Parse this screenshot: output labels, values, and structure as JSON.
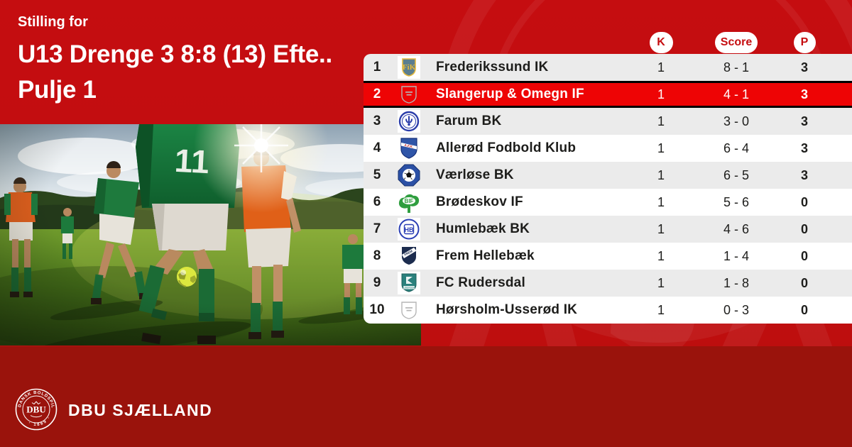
{
  "header": {
    "eyebrow": "Stilling for",
    "title_line1": "U13 Drenge 3 8:8 (13) Efte..",
    "title_line2": "Pulje 1"
  },
  "table": {
    "columns": {
      "played": "K",
      "score": "Score",
      "points": "P"
    },
    "rows": [
      {
        "pos": "1",
        "club": "Frederikssund IK",
        "logo": "frederikssund",
        "played": "1",
        "score": "8 - 1",
        "points": "3",
        "highlight": false
      },
      {
        "pos": "2",
        "club": "Slangerup & Omegn IF",
        "logo": "placeholder",
        "played": "1",
        "score": "4 - 1",
        "points": "3",
        "highlight": true
      },
      {
        "pos": "3",
        "club": "Farum BK",
        "logo": "farum",
        "played": "1",
        "score": "3 - 0",
        "points": "3",
        "highlight": false
      },
      {
        "pos": "4",
        "club": "Allerød Fodbold Klub",
        "logo": "alleroed",
        "played": "1",
        "score": "6 - 4",
        "points": "3",
        "highlight": false
      },
      {
        "pos": "5",
        "club": "Værløse BK",
        "logo": "vaerloese",
        "played": "1",
        "score": "6 - 5",
        "points": "3",
        "highlight": false
      },
      {
        "pos": "6",
        "club": "Brødeskov IF",
        "logo": "broedeskov",
        "played": "1",
        "score": "5 - 6",
        "points": "0",
        "highlight": false
      },
      {
        "pos": "7",
        "club": "Humlebæk BK",
        "logo": "humlebaek",
        "played": "1",
        "score": "4 - 6",
        "points": "0",
        "highlight": false
      },
      {
        "pos": "8",
        "club": "Frem Hellebæk",
        "logo": "frem",
        "played": "1",
        "score": "1 - 4",
        "points": "0",
        "highlight": false
      },
      {
        "pos": "9",
        "club": "FC Rudersdal",
        "logo": "rudersdal",
        "played": "1",
        "score": "1 - 8",
        "points": "0",
        "highlight": false
      },
      {
        "pos": "10",
        "club": "Hørsholm-Usserød IK",
        "logo": "placeholder",
        "played": "1",
        "score": "0 - 3",
        "points": "0",
        "highlight": false
      }
    ]
  },
  "footer": {
    "brand": "DBU SJÆLLAND",
    "crest_center": "DBU",
    "crest_ring_top": "DANSK BOLDSPIL UNION",
    "crest_ring_bottom": "· 1889 ·"
  },
  "colors": {
    "accent": "#c50d10",
    "highlight": "#ee0405",
    "footer": "#9a130c",
    "rowgray": "#ebebeb",
    "text_dark": "#1d1d1b",
    "white": "#ffffff",
    "black_border": "#000000"
  }
}
